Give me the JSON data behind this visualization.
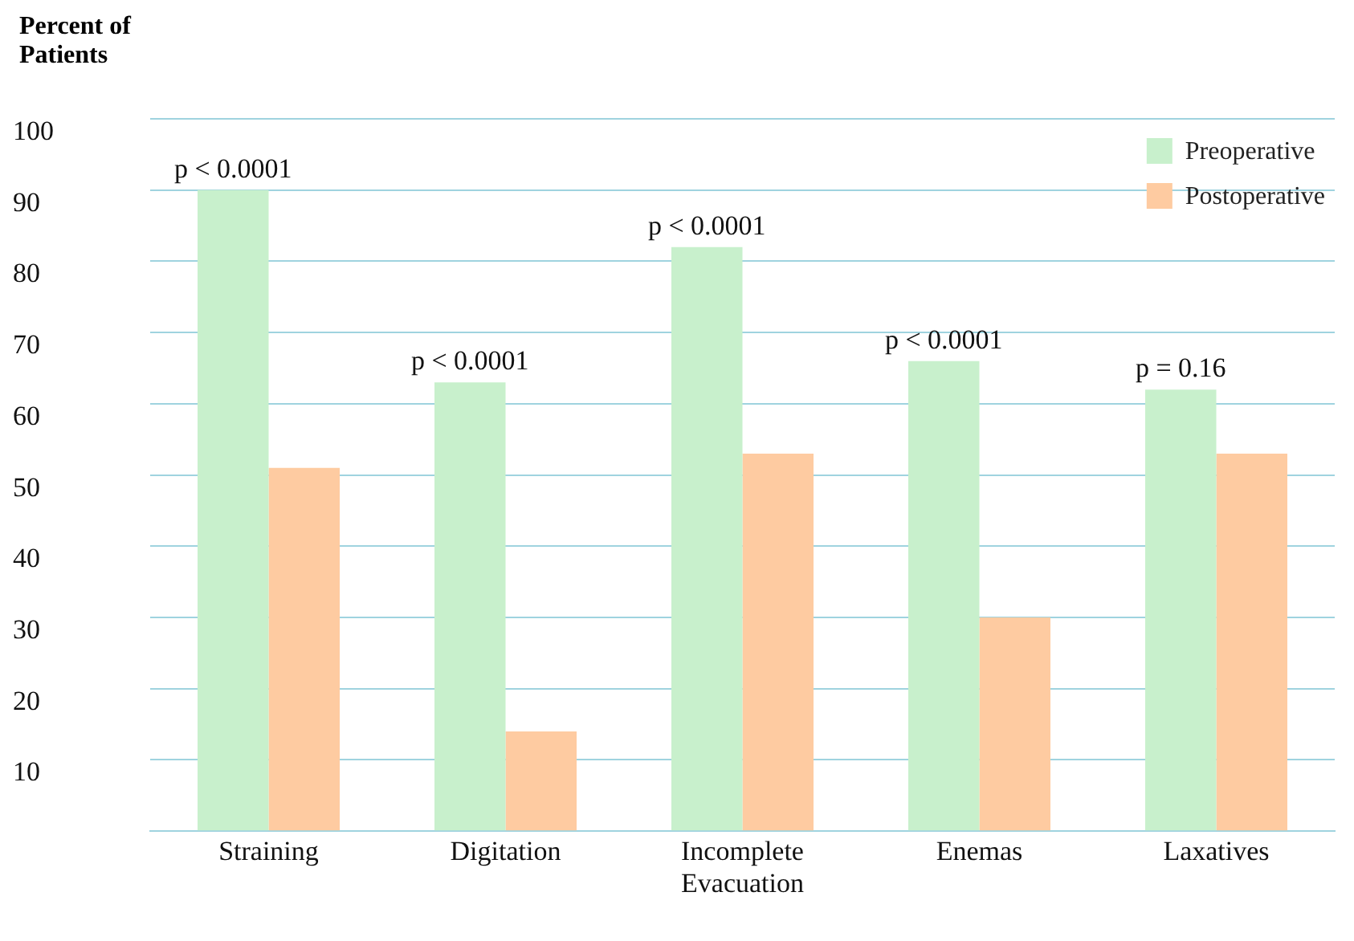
{
  "chart_data": {
    "type": "bar",
    "ylabel": "Percent of Patients",
    "categories": [
      "Straining",
      "Digitation",
      "Incomplete Evacuation",
      "Enemas",
      "Laxatives"
    ],
    "series": [
      {
        "name": "Preoperative",
        "color": "#c8f0cc",
        "values": [
          90,
          63,
          82,
          66,
          62
        ]
      },
      {
        "name": "Postoperative",
        "color": "#fecba1",
        "values": [
          51,
          14,
          53,
          30,
          53
        ]
      }
    ],
    "ylim": [
      0,
      100
    ],
    "yticks": [
      {
        "value": 0,
        "label": null
      },
      10,
      20,
      30,
      40,
      50,
      60,
      70,
      80,
      90,
      100
    ],
    "grid": "y",
    "legend": "top right",
    "annotations": [
      {
        "text": "p < 0.0001",
        "x": "Straining",
        "y": 90
      },
      {
        "text": "p < 0.0001",
        "x": "Digitation",
        "y": 63
      },
      {
        "text": "p < 0.0001",
        "x": "Incomplete Evacuation",
        "y": 82
      },
      {
        "text": "p < 0.0001",
        "x": "Enemas",
        "y": 66
      },
      {
        "text": "p = 0.16",
        "x": "Laxatives",
        "y": 62
      }
    ]
  }
}
